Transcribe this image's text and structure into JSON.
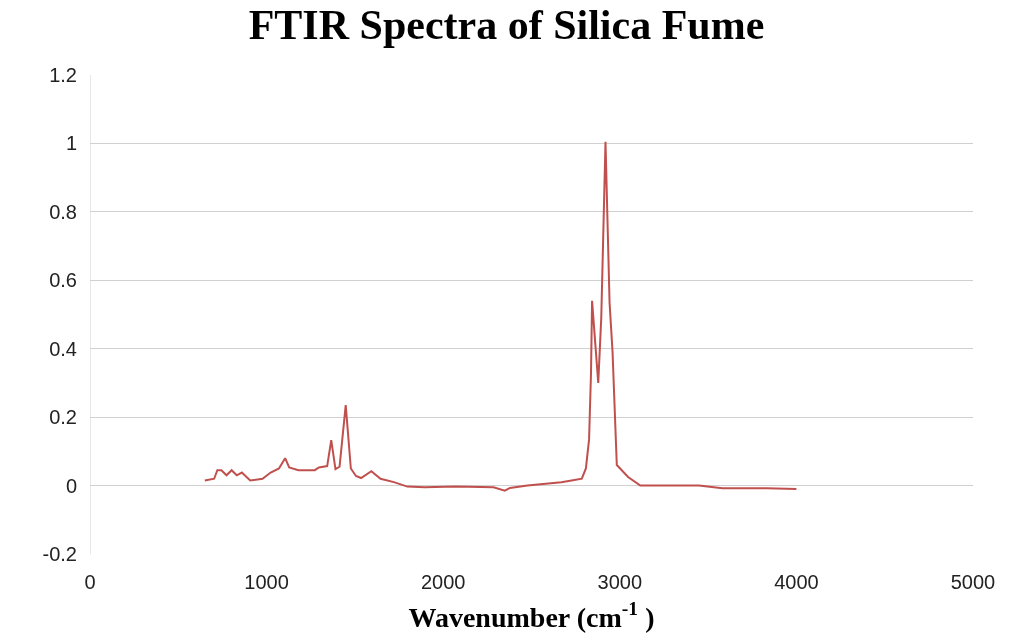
{
  "chart_data": {
    "type": "line",
    "title": "FTIR Spectra of Silica Fume",
    "xlabel": "Wavenumber (cm$^{-1}$ )",
    "xlim": [
      0,
      5000
    ],
    "xticks": [
      0,
      1000,
      2000,
      3000,
      4000,
      5000
    ],
    "ylim": [
      -0.2,
      1.2
    ],
    "yticks": [
      -0.2,
      0,
      0.2,
      0.4,
      0.6,
      0.8,
      1,
      1.2
    ],
    "grid": "y",
    "marker": "none",
    "line_style": "solid",
    "series": [
      {
        "color": "#c0504d",
        "x": [
          650,
          703,
          721,
          744,
          773,
          802,
          831,
          860,
          907,
          977,
          1023,
          1070,
          1105,
          1128,
          1180,
          1273,
          1296,
          1343,
          1366,
          1390,
          1413,
          1448,
          1477,
          1506,
          1535,
          1593,
          1645,
          1721,
          1797,
          1895,
          2070,
          2285,
          2349,
          2378,
          2477,
          2669,
          2727,
          2785,
          2808,
          2826,
          2837,
          2843,
          2878,
          2895,
          2919,
          2942,
          2959,
          2983,
          3047,
          3116,
          3448,
          3581,
          3831,
          4000
        ],
        "values": [
          0.015,
          0.02,
          0.045,
          0.045,
          0.03,
          0.045,
          0.03,
          0.038,
          0.015,
          0.02,
          0.038,
          0.05,
          0.08,
          0.053,
          0.045,
          0.045,
          0.053,
          0.057,
          0.133,
          0.048,
          0.055,
          0.235,
          0.05,
          0.028,
          0.022,
          0.042,
          0.02,
          0.01,
          -0.003,
          -0.005,
          -0.003,
          -0.005,
          -0.015,
          -0.007,
          0,
          0.01,
          0.015,
          0.02,
          0.05,
          0.135,
          0.33,
          0.54,
          0.3,
          0.49,
          1.005,
          0.535,
          0.39,
          0.06,
          0.025,
          0,
          0,
          -0.008,
          -0.008,
          -0.01
        ]
      }
    ]
  }
}
